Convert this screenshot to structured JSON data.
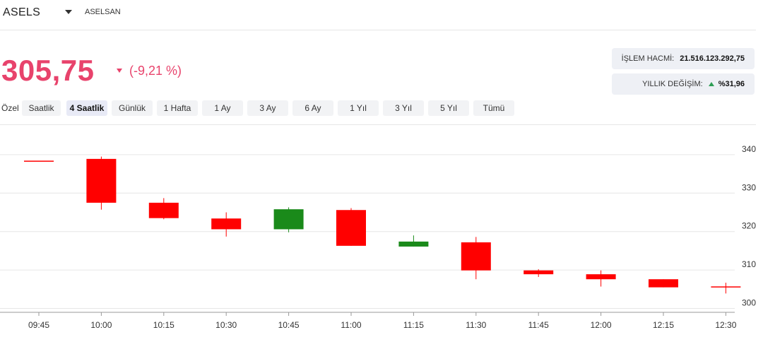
{
  "header": {
    "symbol": "ASELS",
    "company": "ASELSAN"
  },
  "quote": {
    "price": "305,75",
    "change": "(-9,21 %)"
  },
  "stats": {
    "volume_label": "İŞLEM HACMİ:",
    "volume_value": "21.516.123.292,75",
    "yearly_label": "YILLIK DEĞİŞİM:",
    "yearly_value": "%31,96"
  },
  "tabs": {
    "custom": "Özel",
    "items": [
      "Saatlik",
      "4 Saatlik",
      "Günlük",
      "1 Hafta",
      "1 Ay",
      "3 Ay",
      "6 Ay",
      "1 Yıl",
      "3 Yıl",
      "5 Yıl",
      "Tümü"
    ],
    "active": "4 Saatlik"
  },
  "colors": {
    "up": "#1a8a1a",
    "down": "#ff0000",
    "price": "#e8436c"
  },
  "chart_data": {
    "type": "candlestick",
    "grid": true,
    "ylim": [
      299,
      342
    ],
    "y_ticks": [
      300,
      310,
      320,
      330,
      340
    ],
    "candles": [
      {
        "x": "09:45",
        "open": 338.3,
        "high": 338.3,
        "low": 338.3,
        "close": 338.3
      },
      {
        "x": "10:00",
        "open": 338.9,
        "high": 339.5,
        "low": 325.7,
        "close": 327.5
      },
      {
        "x": "10:15",
        "open": 327.5,
        "high": 328.7,
        "low": 323.2,
        "close": 323.5
      },
      {
        "x": "10:30",
        "open": 323.4,
        "high": 325.0,
        "low": 318.7,
        "close": 320.6
      },
      {
        "x": "10:45",
        "open": 320.6,
        "high": 326.3,
        "low": 319.8,
        "close": 325.8
      },
      {
        "x": "11:00",
        "open": 325.6,
        "high": 326.1,
        "low": 316.3,
        "close": 316.3
      },
      {
        "x": "11:15",
        "open": 316.1,
        "high": 319.0,
        "low": 316.1,
        "close": 317.4
      },
      {
        "x": "11:30",
        "open": 317.2,
        "high": 318.6,
        "low": 307.6,
        "close": 309.9
      },
      {
        "x": "11:45",
        "open": 309.9,
        "high": 310.2,
        "low": 308.2,
        "close": 308.9
      },
      {
        "x": "12:00",
        "open": 308.9,
        "high": 309.9,
        "low": 305.7,
        "close": 307.6
      },
      {
        "x": "12:15",
        "open": 307.6,
        "high": 307.6,
        "low": 305.5,
        "close": 305.5
      },
      {
        "x": "12:30",
        "open": 305.6,
        "high": 306.7,
        "low": 303.9,
        "close": 305.5
      }
    ]
  }
}
